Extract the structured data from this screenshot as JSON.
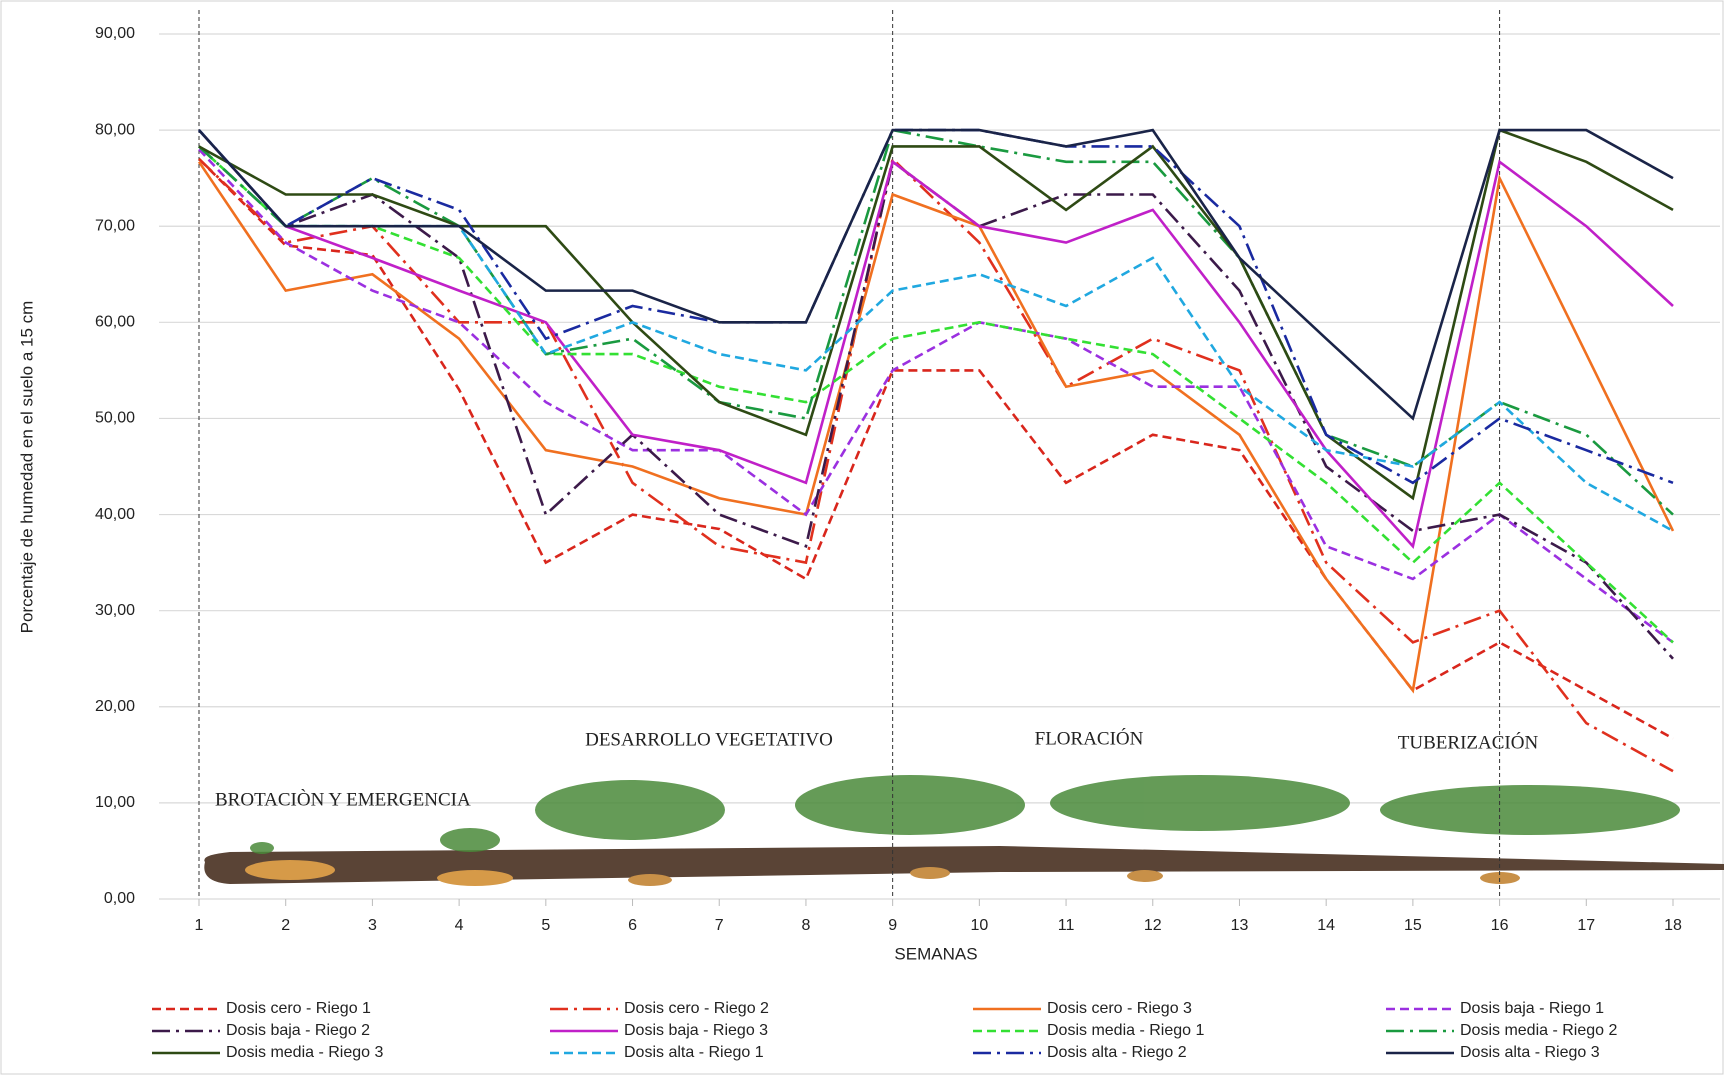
{
  "chart_data": {
    "type": "line",
    "x_label": "SEMANAS",
    "y_label": "Porcentaje de humedad en el suelo a 15 cm",
    "categories": [
      "1",
      "2",
      "3",
      "4",
      "5",
      "6",
      "7",
      "8",
      "9",
      "10",
      "11",
      "12",
      "13",
      "14",
      "15",
      "16",
      "17",
      "18"
    ],
    "ylim": [
      0,
      90
    ],
    "yticks": [
      {
        "value": 0,
        "label": "0,00"
      },
      {
        "value": 10,
        "label": "10,00"
      },
      {
        "value": 20,
        "label": "20,00"
      },
      {
        "value": 30,
        "label": "30,00"
      },
      {
        "value": 40,
        "label": "40,00"
      },
      {
        "value": 50,
        "label": "50,00"
      },
      {
        "value": 60,
        "label": "60,00"
      },
      {
        "value": 70,
        "label": "70,00"
      },
      {
        "value": 80,
        "label": "80,00"
      },
      {
        "value": 90,
        "label": "90,00"
      }
    ],
    "grid": true,
    "legend_position": "bottom",
    "annotations": [
      "BROTACIÒN Y EMERGENCIA",
      "DESARROLLO VEGETATIVO",
      "FLORACIÓN",
      "TUBERIZACIÓN"
    ],
    "series": [
      {
        "name": "Dosis cero - Riego 1",
        "color": "#d9261c",
        "style": "dash",
        "values": [
          77,
          68,
          67,
          53,
          35,
          40,
          38.5,
          33.3,
          55,
          55,
          43.3,
          48.3,
          46.7,
          33.3,
          21.7,
          26.7,
          21.7,
          16.7
        ]
      },
      {
        "name": "Dosis cero - Riego 2",
        "color": "#e0301e",
        "style": "dashdot",
        "values": [
          77,
          68.3,
          70,
          60,
          60,
          43.3,
          36.7,
          35,
          77,
          68.3,
          53.3,
          58.3,
          55,
          35,
          26.7,
          30,
          18.3,
          13.3
        ]
      },
      {
        "name": "Dosis cero - Riego 3",
        "color": "#f07020",
        "style": "solid",
        "values": [
          76.7,
          63.3,
          65,
          58.3,
          46.7,
          45,
          41.7,
          40,
          73.3,
          70,
          53.3,
          55,
          48.3,
          33.3,
          21.7,
          75,
          56.7,
          38.3
        ]
      },
      {
        "name": "Dosis baja - Riego 1",
        "color": "#9b30e0",
        "style": "dash",
        "values": [
          78,
          68.3,
          63.3,
          60,
          51.7,
          46.7,
          46.7,
          40,
          55,
          60,
          58.3,
          53.3,
          53.3,
          36.7,
          33.3,
          40,
          33.3,
          26.7
        ]
      },
      {
        "name": "Dosis baja - Riego 2",
        "color": "#3c1a4a",
        "style": "dashdot",
        "values": [
          78.3,
          70,
          73.3,
          66.7,
          40,
          48.3,
          40,
          36.7,
          76.7,
          70,
          73.3,
          73.3,
          63.3,
          45,
          38.3,
          40,
          35,
          25
        ]
      },
      {
        "name": "Dosis baja - Riego 3",
        "color": "#c020c8",
        "style": "solid",
        "values": [
          80,
          70,
          66.7,
          63.3,
          60,
          48.3,
          46.7,
          43.3,
          76.7,
          70,
          68.3,
          71.7,
          60,
          46.7,
          36.7,
          76.7,
          70,
          61.7
        ]
      },
      {
        "name": "Dosis media - Riego 1",
        "color": "#33e033",
        "style": "dash",
        "values": [
          78.3,
          70,
          70,
          66.7,
          56.7,
          56.7,
          53.3,
          51.7,
          58.3,
          60,
          58.3,
          56.7,
          50,
          43.3,
          35,
          43.3,
          35,
          26.7
        ]
      },
      {
        "name": "Dosis media - Riego 2",
        "color": "#1a9a40",
        "style": "dashdot",
        "values": [
          78.3,
          70,
          75,
          70,
          56.7,
          58.3,
          51.7,
          50,
          80,
          78.3,
          76.7,
          76.7,
          66.7,
          48.3,
          45,
          51.7,
          48.3,
          40
        ]
      },
      {
        "name": "Dosis media - Riego 3",
        "color": "#2e4a14",
        "style": "solid",
        "values": [
          78.3,
          73.3,
          73.3,
          70,
          70,
          60,
          51.7,
          48.3,
          78.3,
          78.3,
          71.7,
          78.3,
          66.7,
          48.3,
          41.7,
          80,
          76.7,
          71.7
        ]
      },
      {
        "name": "Dosis alta - Riego 1",
        "color": "#20a8e0",
        "style": "dash",
        "values": [
          80,
          70,
          70,
          70,
          56.7,
          60,
          56.7,
          55,
          63.3,
          65,
          61.7,
          66.7,
          53.3,
          46.7,
          45,
          51.7,
          43.3,
          38.3
        ]
      },
      {
        "name": "Dosis alta - Riego 2",
        "color": "#1a2aa0",
        "style": "dashdot",
        "values": [
          80,
          70,
          75,
          71.7,
          58.3,
          61.7,
          60,
          60,
          80,
          80,
          78.3,
          78.3,
          70,
          48.3,
          43.3,
          50,
          46.7,
          43.3
        ]
      },
      {
        "name": "Dosis alta - Riego 3",
        "color": "#1a2448",
        "style": "solid",
        "values": [
          80,
          70,
          70,
          70,
          63.3,
          63.3,
          60,
          60,
          80,
          80,
          78.3,
          80,
          66.7,
          58.3,
          50,
          80,
          80,
          75
        ]
      }
    ]
  }
}
